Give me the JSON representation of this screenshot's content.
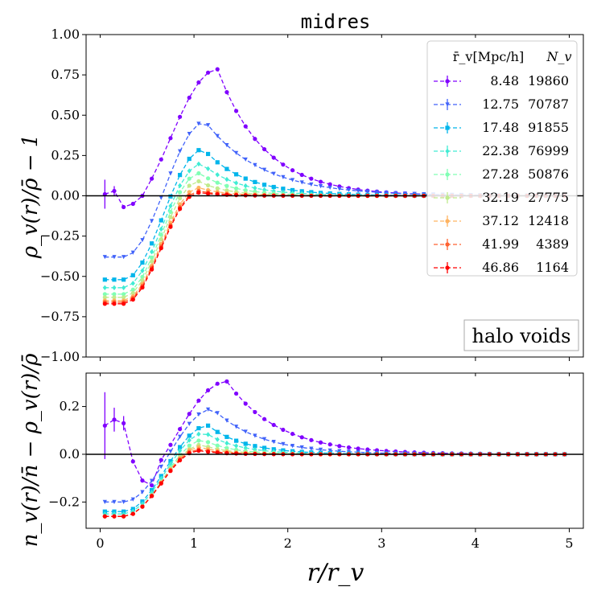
{
  "chart_data": {
    "type": "line",
    "title": "midres",
    "x_label": "r/r_v",
    "x_ticks": [
      "0",
      "1",
      "2",
      "3",
      "4",
      "5"
    ],
    "x_range": [
      -0.15,
      5.15
    ],
    "legend": {
      "col1_header": "r̄_v[Mpc/h]",
      "col2_header": "N_v",
      "placement": "top-right"
    },
    "series": [
      {
        "name": "8.48",
        "count": "19860",
        "color": "#8000ff",
        "marker": "circle"
      },
      {
        "name": "12.75",
        "count": "70787",
        "color": "#4062fa",
        "marker": "triangle-down"
      },
      {
        "name": "17.48",
        "count": "91855",
        "color": "#00b5eb",
        "marker": "square"
      },
      {
        "name": "22.38",
        "count": "76999",
        "color": "#40ecd4",
        "marker": "diamond"
      },
      {
        "name": "27.28",
        "count": "50876",
        "color": "#80ffb4",
        "marker": "circle"
      },
      {
        "name": "32.19",
        "count": "27775",
        "color": "#c0eb8d",
        "marker": "circle"
      },
      {
        "name": "37.12",
        "count": "12418",
        "color": "#ffb360",
        "marker": "circle"
      },
      {
        "name": "41.99",
        "count": "4389",
        "color": "#ff6230",
        "marker": "circle"
      },
      {
        "name": "46.86",
        "count": "1164",
        "color": "#ff0000",
        "marker": "circle"
      }
    ],
    "panels": [
      {
        "id": "top",
        "y_label": "ρ_v(r)/ρ̄ − 1",
        "y_range": [
          -1.0,
          1.0
        ],
        "y_ticks": [
          "1.00",
          "0.75",
          "0.50",
          "0.25",
          "0.00",
          "−0.25",
          "−0.50",
          "−0.75",
          "−1.00"
        ],
        "y_tick_values": [
          1.0,
          0.75,
          0.5,
          0.25,
          0.0,
          -0.25,
          -0.5,
          -0.75,
          -1.0
        ],
        "hline": 0,
        "annotation": "halo voids",
        "curves": [
          {
            "ymin": -0.07,
            "ypeak": 0.785,
            "xpeak": 1.25,
            "tail": 0.5
          },
          {
            "ymin": -0.38,
            "ypeak": 0.46,
            "xpeak": 1.12,
            "tail": 0.6
          },
          {
            "ymin": -0.52,
            "ypeak": 0.29,
            "xpeak": 1.1,
            "tail": 0.45
          },
          {
            "ymin": -0.57,
            "ypeak": 0.2,
            "xpeak": 1.08,
            "tail": 0.4
          },
          {
            "ymin": -0.61,
            "ypeak": 0.14,
            "xpeak": 1.06,
            "tail": 0.35
          },
          {
            "ymin": -0.63,
            "ypeak": 0.09,
            "xpeak": 1.05,
            "tail": 0.3
          },
          {
            "ymin": -0.65,
            "ypeak": 0.05,
            "xpeak": 1.05,
            "tail": 0.28
          },
          {
            "ymin": -0.66,
            "ypeak": 0.03,
            "xpeak": 1.05,
            "tail": 0.26
          },
          {
            "ymin": -0.67,
            "ypeak": 0.02,
            "xpeak": 1.05,
            "tail": 0.25
          }
        ],
        "first_series_points": [
          [
            0.05,
            0.01
          ],
          [
            0.15,
            0.03
          ],
          [
            0.25,
            -0.07
          ],
          [
            0.35,
            -0.05
          ],
          [
            0.45,
            0.0
          ]
        ]
      },
      {
        "id": "bottom",
        "y_label": "n_v(r)/n̄ − ρ_v(r)/ρ̄",
        "y_range": [
          -0.31,
          0.34
        ],
        "y_ticks": [
          "0.2",
          "0.0",
          "−0.2"
        ],
        "y_tick_values": [
          0.2,
          0.0,
          -0.2
        ],
        "hline": 0,
        "curves": [
          {
            "ymin": -0.16,
            "ypeak": 0.305,
            "xpeak": 1.35,
            "tail": 0.55
          },
          {
            "ymin": -0.2,
            "ypeak": 0.19,
            "xpeak": 1.2,
            "tail": 0.5
          },
          {
            "ymin": -0.24,
            "ypeak": 0.12,
            "xpeak": 1.15,
            "tail": 0.4
          },
          {
            "ymin": -0.25,
            "ypeak": 0.09,
            "xpeak": 1.12,
            "tail": 0.35
          },
          {
            "ymin": -0.26,
            "ypeak": 0.06,
            "xpeak": 1.1,
            "tail": 0.3
          },
          {
            "ymin": -0.26,
            "ypeak": 0.04,
            "xpeak": 1.08,
            "tail": 0.28
          },
          {
            "ymin": -0.26,
            "ypeak": 0.03,
            "xpeak": 1.06,
            "tail": 0.27
          },
          {
            "ymin": -0.26,
            "ypeak": 0.02,
            "xpeak": 1.05,
            "tail": 0.26
          },
          {
            "ymin": -0.26,
            "ypeak": 0.015,
            "xpeak": 1.05,
            "tail": 0.25
          }
        ],
        "first_series_points": [
          [
            0.05,
            0.12
          ],
          [
            0.15,
            0.145
          ],
          [
            0.25,
            0.13
          ],
          [
            0.35,
            -0.03
          ],
          [
            0.45,
            -0.11
          ],
          [
            0.55,
            -0.13
          ]
        ]
      }
    ]
  }
}
